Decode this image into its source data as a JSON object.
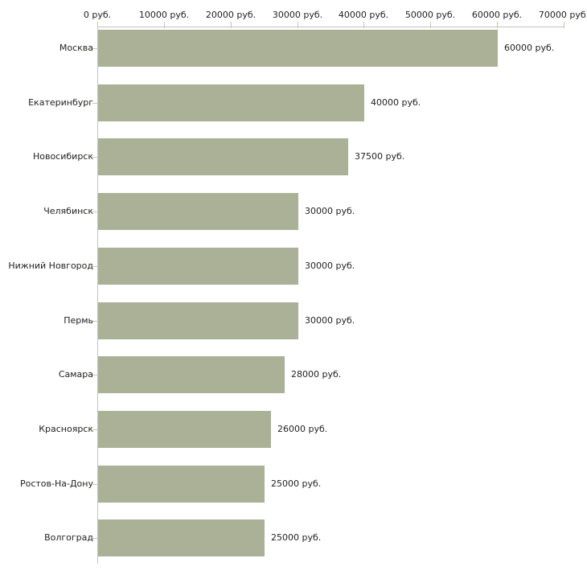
{
  "chart_data": {
    "type": "bar",
    "orientation": "horizontal",
    "title": "",
    "xlabel": "",
    "ylabel": "",
    "unit_suffix": " руб.",
    "categories": [
      "Москва",
      "Екатеринбург",
      "Новосибирск",
      "Челябинск",
      "Нижний Новгород",
      "Пермь",
      "Самара",
      "Красноярск",
      "Ростов-На-Дону",
      "Волгоград"
    ],
    "values": [
      60000,
      40000,
      37500,
      30000,
      30000,
      30000,
      28000,
      26000,
      25000,
      25000
    ],
    "value_labels": [
      "60000 руб.",
      "40000 руб.",
      "37500 руб.",
      "30000 руб.",
      "30000 руб.",
      "30000 руб.",
      "28000 руб.",
      "26000 руб.",
      "25000 руб.",
      "25000 руб."
    ],
    "x_axis": {
      "position": "top",
      "range": [
        0,
        70000
      ],
      "ticks": [
        0,
        10000,
        20000,
        30000,
        40000,
        50000,
        60000,
        70000
      ],
      "tick_labels": [
        "0 руб.",
        "10000 руб.",
        "20000 руб.",
        "30000 руб.",
        "40000 руб.",
        "50000 руб.",
        "60000 руб.",
        "70000 руб."
      ]
    },
    "grid": false,
    "legend": false,
    "colors": {
      "bar": "#abb197",
      "axis_line": "#c3c3c3",
      "tick_mark": "#c9c9a3",
      "text": "#222222",
      "background": "#ffffff"
    }
  }
}
